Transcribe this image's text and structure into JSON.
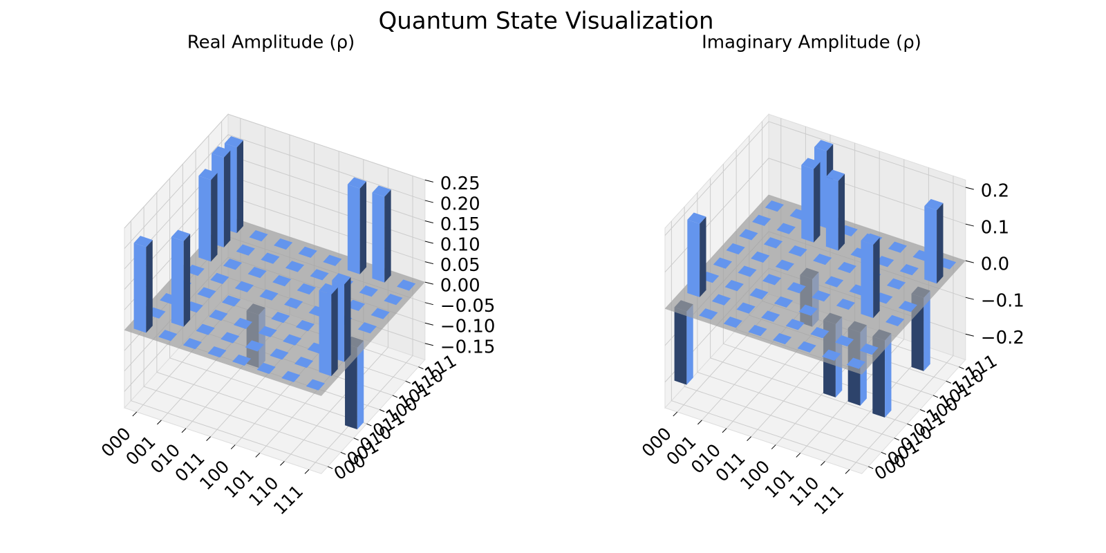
{
  "title": "Quantum State Visualization",
  "chart_data": [
    {
      "type": "bar3d",
      "title": "Real Amplitude (ρ)",
      "color": "#6495ed",
      "x_categories": [
        "000",
        "001",
        "010",
        "011",
        "100",
        "101",
        "110",
        "111"
      ],
      "y_categories": [
        "000",
        "001",
        "010",
        "011",
        "100",
        "101",
        "110",
        "111"
      ],
      "values": [
        [
          0.21,
          0,
          0,
          0,
          0,
          0.2,
          0.22,
          0.21
        ],
        [
          0,
          0.21,
          0,
          0,
          0,
          0,
          0,
          0
        ],
        [
          0,
          0,
          0,
          0,
          0,
          0,
          0,
          0
        ],
        [
          0,
          0,
          0,
          -0.13,
          0,
          0,
          0,
          0
        ],
        [
          0,
          0,
          0,
          0,
          0,
          0,
          0,
          0
        ],
        [
          0,
          0,
          0,
          0,
          0,
          0,
          0,
          0.21
        ],
        [
          0,
          0,
          0,
          0,
          0,
          0,
          0,
          0.21
        ],
        [
          0,
          0.2,
          0.19,
          -0.2,
          0,
          0,
          0,
          0
        ]
      ],
      "zlim": [
        -0.19,
        0.25
      ],
      "zticks": [
        {
          "value": -0.15,
          "label": "−0.15"
        },
        {
          "value": -0.1,
          "label": "−0.10"
        },
        {
          "value": -0.05,
          "label": "−0.05"
        },
        {
          "value": 0,
          "label": "0.00"
        },
        0.05,
        {
          "value": 0.1,
          "label": "0.10"
        },
        0.15,
        {
          "value": 0.2,
          "label": "0.20"
        },
        0.25
      ]
    },
    {
      "type": "bar3d",
      "title": "Imaginary Amplitude (ρ)",
      "color": "#6495ed",
      "x_categories": [
        "000",
        "001",
        "010",
        "011",
        "100",
        "101",
        "110",
        "111"
      ],
      "y_categories": [
        "000",
        "001",
        "010",
        "011",
        "100",
        "101",
        "110",
        "111"
      ],
      "values": [
        [
          -0.2,
          0.2,
          0,
          0,
          0,
          0,
          0,
          0
        ],
        [
          0,
          0,
          0,
          0,
          0,
          0,
          0,
          0
        ],
        [
          0,
          0,
          0,
          0,
          0,
          0,
          0.2,
          0.21
        ],
        [
          0,
          0,
          0,
          0,
          -0.13,
          0,
          0.19,
          0
        ],
        [
          0,
          0,
          0,
          0,
          0,
          0,
          0,
          0
        ],
        [
          0,
          0,
          -0.2,
          0,
          0,
          0,
          0,
          0
        ],
        [
          0,
          0,
          -0.2,
          0.2,
          0,
          0,
          0,
          0
        ],
        [
          0,
          0,
          -0.21,
          0,
          0,
          -0.2,
          0.2,
          0
        ]
      ],
      "zlim": [
        -0.27,
        0.22
      ],
      "zticks": [
        {
          "value": -0.2,
          "label": "−0.2"
        },
        {
          "value": -0.1,
          "label": "−0.1"
        },
        {
          "value": 0,
          "label": "0.0"
        },
        0.1,
        0.2
      ]
    }
  ]
}
